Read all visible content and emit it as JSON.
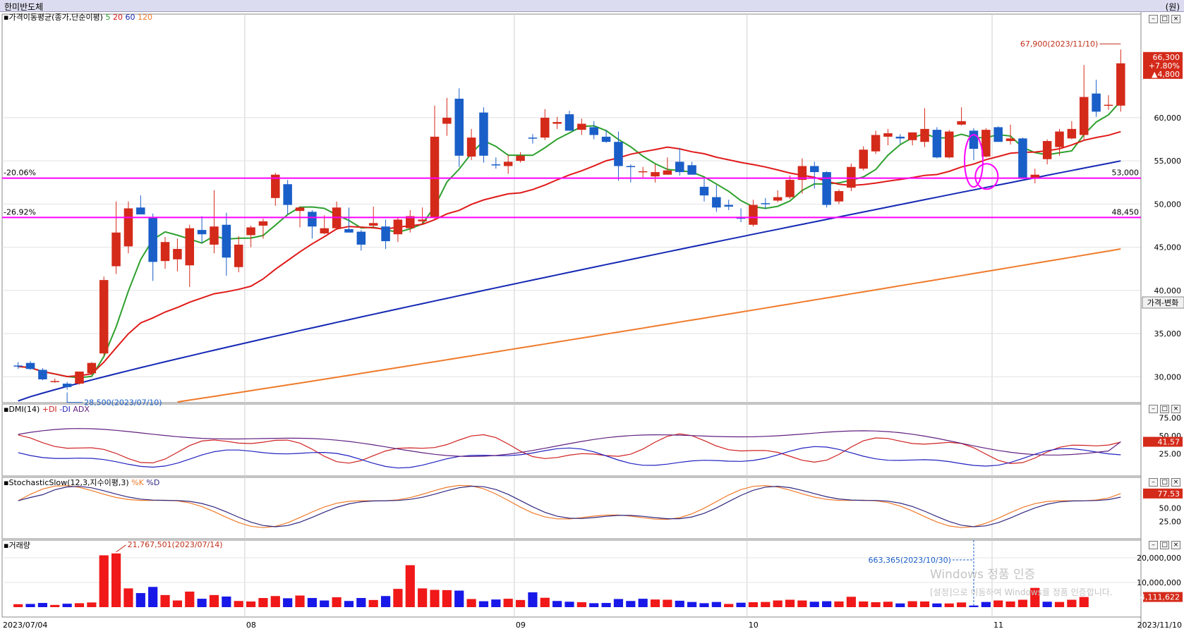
{
  "window": {
    "title": "한미반도체",
    "unit": "(원)"
  },
  "panels": {
    "price": {
      "legend_title": "가격이동평균(종가,단순이평)",
      "ma_labels": [
        "5",
        "20",
        "60",
        "120"
      ],
      "ma_colors": [
        "#2ea02e",
        "#e01a1a",
        "#1428b4",
        "#f07a2a"
      ],
      "y_ticks": [
        "60,000",
        "55,000",
        "50,000",
        "45,000",
        "40,000",
        "35,000",
        "30,000"
      ],
      "y_tick_values": [
        60000,
        55000,
        50000,
        45000,
        40000,
        35000,
        30000
      ],
      "hlines": [
        {
          "label_left": "-20.06%",
          "label_right": "53,000",
          "value": 53000,
          "color": "#ff00ff"
        },
        {
          "label_left": "-26.92%",
          "label_right": "48,450",
          "value": 48450,
          "color": "#ff00ff"
        }
      ],
      "high_annotation": "67,900(2023/11/10)",
      "low_annotation": "28,500(2023/07/10)",
      "current_box": {
        "price": "66,300",
        "pct": "+7.80%",
        "chg": "▲4,800"
      },
      "side_button": "가격-변화"
    },
    "dmi": {
      "title": "DMI(14)",
      "series_labels": [
        "+DI",
        "-DI",
        "ADX"
      ],
      "series_colors": [
        "#d02020",
        "#2020c0",
        "#602080"
      ],
      "y_ticks": [
        "75.00",
        "50.00",
        "25.00"
      ],
      "current": "41.57"
    },
    "stoch": {
      "title": "StochasticSlow(12,3,지수이평,3)",
      "series_labels": [
        "%K",
        "%D"
      ],
      "series_colors": [
        "#f07a2a",
        "#302880"
      ],
      "y_ticks": [
        "75.00",
        "50.00",
        "25.00"
      ],
      "current": "77.53"
    },
    "volume": {
      "title": "거래량",
      "y_ticks": [
        "20,000,000",
        "10,000,000"
      ],
      "max_annotation": "21,767,501(2023/07/14)",
      "mark_annotation": "663,365(2023/10/30)",
      "current": "4,111,622"
    }
  },
  "x_axis": {
    "start_label": "2023/07/04",
    "end_label": "2023/11/10",
    "month_labels": [
      "08",
      "09",
      "10",
      "11"
    ],
    "month_start_index": [
      19,
      41,
      60,
      80
    ]
  },
  "watermark": {
    "line1": "Windows 정품 인증",
    "line2": "[설정]으로 이동하여 Windows를 정품 인증합니다."
  },
  "chart_data": {
    "type": "candlestick",
    "title": "한미반도체",
    "ylabel": "(원)",
    "ylim": [
      27000,
      72000
    ],
    "dates": [
      "2023/07/04",
      "2023/07/05",
      "2023/07/06",
      "2023/07/07",
      "2023/07/10",
      "2023/07/11",
      "2023/07/12",
      "2023/07/13",
      "2023/07/14",
      "2023/07/17",
      "2023/07/18",
      "2023/07/19",
      "2023/07/20",
      "2023/07/21",
      "2023/07/24",
      "2023/07/25",
      "2023/07/26",
      "2023/07/27",
      "2023/07/28",
      "2023/07/31",
      "2023/08/01",
      "2023/08/02",
      "2023/08/03",
      "2023/08/04",
      "2023/08/07",
      "2023/08/08",
      "2023/08/09",
      "2023/08/10",
      "2023/08/11",
      "2023/08/14",
      "2023/08/16",
      "2023/08/17",
      "2023/08/18",
      "2023/08/21",
      "2023/08/22",
      "2023/08/23",
      "2023/08/24",
      "2023/08/25",
      "2023/08/28",
      "2023/08/29",
      "2023/08/30",
      "2023/08/31",
      "2023/09/01",
      "2023/09/04",
      "2023/09/05",
      "2023/09/06",
      "2023/09/07",
      "2023/09/08",
      "2023/09/11",
      "2023/09/12",
      "2023/09/13",
      "2023/09/14",
      "2023/09/15",
      "2023/09/18",
      "2023/09/19",
      "2023/09/20",
      "2023/09/21",
      "2023/09/22",
      "2023/09/25",
      "2023/09/26",
      "2023/09/27",
      "2023/10/04",
      "2023/10/05",
      "2023/10/06",
      "2023/10/10",
      "2023/10/11",
      "2023/10/12",
      "2023/10/13",
      "2023/10/16",
      "2023/10/17",
      "2023/10/18",
      "2023/10/19",
      "2023/10/20",
      "2023/10/23",
      "2023/10/24",
      "2023/10/25",
      "2023/10/26",
      "2023/10/27",
      "2023/10/30",
      "2023/10/31",
      "2023/11/01",
      "2023/11/02",
      "2023/11/03",
      "2023/11/06",
      "2023/11/07",
      "2023/11/08",
      "2023/11/09",
      "2023/11/10"
    ],
    "ohlc": [
      [
        31300,
        31700,
        30900,
        31200
      ],
      [
        31600,
        31800,
        30800,
        30900
      ],
      [
        30800,
        31000,
        29600,
        29700
      ],
      [
        29500,
        29800,
        29300,
        29500
      ],
      [
        29200,
        29400,
        28500,
        28800
      ],
      [
        29200,
        30600,
        29100,
        30600
      ],
      [
        30400,
        31700,
        30300,
        31600
      ],
      [
        32700,
        41600,
        32400,
        41200
      ],
      [
        42800,
        50300,
        41900,
        46700
      ],
      [
        45100,
        50300,
        44300,
        49500
      ],
      [
        49600,
        51000,
        49100,
        48800
      ],
      [
        48500,
        48900,
        41100,
        43300
      ],
      [
        43400,
        46200,
        42500,
        45600
      ],
      [
        43600,
        46000,
        42200,
        44800
      ],
      [
        42900,
        47600,
        40400,
        47200
      ],
      [
        47000,
        48600,
        45500,
        46500
      ],
      [
        45300,
        51600,
        44300,
        47400
      ],
      [
        47600,
        49000,
        41700,
        43800
      ],
      [
        42700,
        46300,
        42100,
        45300
      ],
      [
        46400,
        47500,
        45000,
        47300
      ],
      [
        47500,
        48300,
        46000,
        48000
      ],
      [
        50700,
        53600,
        49800,
        53400
      ],
      [
        52300,
        52800,
        48800,
        49900
      ],
      [
        49200,
        49700,
        47300,
        49600
      ],
      [
        49100,
        49300,
        46000,
        47400
      ],
      [
        46600,
        48700,
        46500,
        47200
      ],
      [
        47200,
        50300,
        47000,
        49600
      ],
      [
        47100,
        49600,
        46700,
        46700
      ],
      [
        46800,
        47000,
        44600,
        45300
      ],
      [
        47500,
        49700,
        47300,
        47800
      ],
      [
        47400,
        48200,
        44800,
        45700
      ],
      [
        46500,
        48400,
        45600,
        48200
      ],
      [
        47200,
        49300,
        46700,
        48600
      ],
      [
        48000,
        49600,
        47700,
        48200
      ],
      [
        48400,
        61400,
        48200,
        57800
      ],
      [
        59300,
        62300,
        57900,
        60000
      ],
      [
        62200,
        63400,
        54300,
        55600
      ],
      [
        55500,
        58700,
        55100,
        57700
      ],
      [
        60600,
        61200,
        54800,
        55600
      ],
      [
        54600,
        55400,
        54100,
        54500
      ],
      [
        54400,
        55700,
        53500,
        54900
      ],
      [
        55000,
        56000,
        54800,
        55600
      ],
      [
        57700,
        58100,
        57000,
        57600
      ],
      [
        57700,
        61000,
        57400,
        60000
      ],
      [
        59300,
        60100,
        58700,
        59500
      ],
      [
        60400,
        60800,
        58500,
        58500
      ],
      [
        58600,
        59900,
        58000,
        59300
      ],
      [
        58900,
        59600,
        57500,
        58000
      ],
      [
        57800,
        58600,
        57100,
        57200
      ],
      [
        57200,
        58400,
        52700,
        54400
      ],
      [
        54400,
        54600,
        52500,
        54300
      ],
      [
        53800,
        54300,
        53100,
        53800
      ],
      [
        53200,
        54600,
        52500,
        53700
      ],
      [
        53400,
        55400,
        53400,
        53900
      ],
      [
        54900,
        56500,
        53300,
        53700
      ],
      [
        54500,
        54900,
        53800,
        53400
      ],
      [
        52000,
        52900,
        50300,
        51000
      ],
      [
        50800,
        52200,
        49100,
        49600
      ],
      [
        49900,
        50500,
        49300,
        49700
      ],
      [
        48500,
        49500,
        47900,
        48300
      ],
      [
        47600,
        50500,
        47400,
        49900
      ],
      [
        50100,
        50700,
        49400,
        50000
      ],
      [
        50400,
        51600,
        50200,
        50800
      ],
      [
        50800,
        53300,
        50600,
        52800
      ],
      [
        52800,
        55300,
        51200,
        54400
      ],
      [
        54400,
        54900,
        51800,
        53700
      ],
      [
        53700,
        53800,
        49600,
        49900
      ],
      [
        50300,
        51700,
        50000,
        51500
      ],
      [
        51900,
        54700,
        51500,
        54300
      ],
      [
        54100,
        56700,
        53900,
        56300
      ],
      [
        56100,
        58500,
        55800,
        58000
      ],
      [
        57800,
        58700,
        56800,
        58200
      ],
      [
        57800,
        58100,
        57000,
        57600
      ],
      [
        57400,
        58300,
        56800,
        58300
      ],
      [
        57200,
        61100,
        56600,
        58700
      ],
      [
        58600,
        58900,
        55300,
        55400
      ],
      [
        55400,
        58600,
        55300,
        58400
      ],
      [
        59200,
        61200,
        59100,
        59600
      ],
      [
        58500,
        58800,
        55100,
        56400
      ],
      [
        55500,
        58800,
        55400,
        58600
      ],
      [
        58900,
        59000,
        57300,
        57200
      ],
      [
        57300,
        59200,
        56900,
        57600
      ],
      [
        57600,
        57700,
        52900,
        53000
      ],
      [
        53000,
        54100,
        52400,
        53400
      ],
      [
        55200,
        57500,
        54600,
        57300
      ],
      [
        56600,
        58700,
        55600,
        58400
      ],
      [
        57600,
        59600,
        57500,
        58700
      ],
      [
        58000,
        66100,
        57300,
        62400
      ],
      [
        62800,
        64400,
        60100,
        60700
      ],
      [
        61500,
        62600,
        60900,
        61500
      ],
      [
        61400,
        67900,
        60700,
        66300
      ]
    ],
    "ma_periods": [
      5,
      20,
      60,
      120
    ],
    "high": {
      "value": 67900,
      "date": "2023/11/10"
    },
    "low": {
      "value": 28500,
      "date": "2023/07/10"
    },
    "volume": [
      1200000,
      1300000,
      1700000,
      900000,
      1400000,
      1600000,
      1900000,
      21000000,
      21767501,
      7600000,
      5700000,
      8200000,
      4900000,
      2700000,
      6300000,
      3400000,
      4900000,
      4300000,
      2500000,
      2300000,
      3700000,
      4500000,
      3600000,
      4700000,
      3700000,
      2700000,
      4000000,
      2500000,
      3700000,
      2900000,
      4500000,
      7400000,
      17000000,
      7600000,
      7000000,
      6900000,
      6700000,
      3300000,
      2400000,
      3100000,
      3400000,
      2900000,
      6000000,
      3800000,
      2500000,
      2200000,
      2000000,
      1600000,
      1700000,
      3300000,
      2500000,
      3400000,
      3100000,
      3000000,
      2600000,
      2100000,
      1600000,
      2100000,
      1300000,
      1800000,
      2000000,
      2100000,
      2700000,
      3000000,
      2700000,
      2200000,
      2400000,
      2300000,
      4200000,
      2300000,
      2000000,
      2200000,
      1500000,
      2400000,
      2300000,
      1500000,
      1500000,
      1900000,
      663365,
      2100000,
      2700000,
      2300000,
      3000000,
      7800000,
      2200000,
      2100000,
      3000000,
      4111622
    ],
    "volume_direction": [
      "up",
      "down",
      "down",
      "up",
      "down",
      "up",
      "up",
      "up",
      "up",
      "up",
      "down",
      "down",
      "up",
      "up",
      "up",
      "down",
      "up",
      "down",
      "up",
      "up",
      "up",
      "up",
      "down",
      "up",
      "down",
      "down",
      "up",
      "down",
      "down",
      "up",
      "down",
      "up",
      "up",
      "up",
      "up",
      "up",
      "down",
      "up",
      "down",
      "down",
      "up",
      "up",
      "down",
      "up",
      "down",
      "down",
      "up",
      "down",
      "down",
      "down",
      "down",
      "down",
      "up",
      "up",
      "down",
      "down",
      "down",
      "down",
      "up",
      "down",
      "up",
      "up",
      "up",
      "up",
      "up",
      "down",
      "down",
      "up",
      "up",
      "up",
      "up",
      "up",
      "down",
      "up",
      "up",
      "down",
      "up",
      "up",
      "down",
      "down",
      "up",
      "up",
      "up",
      "up",
      "down",
      "up",
      "up",
      "up"
    ],
    "dmi_values": {
      "series": [
        "+DI",
        "-DI",
        "ADX"
      ],
      "last_adx": 41.57
    },
    "stochastic_last": 77.53,
    "volume_last": 4111622
  }
}
